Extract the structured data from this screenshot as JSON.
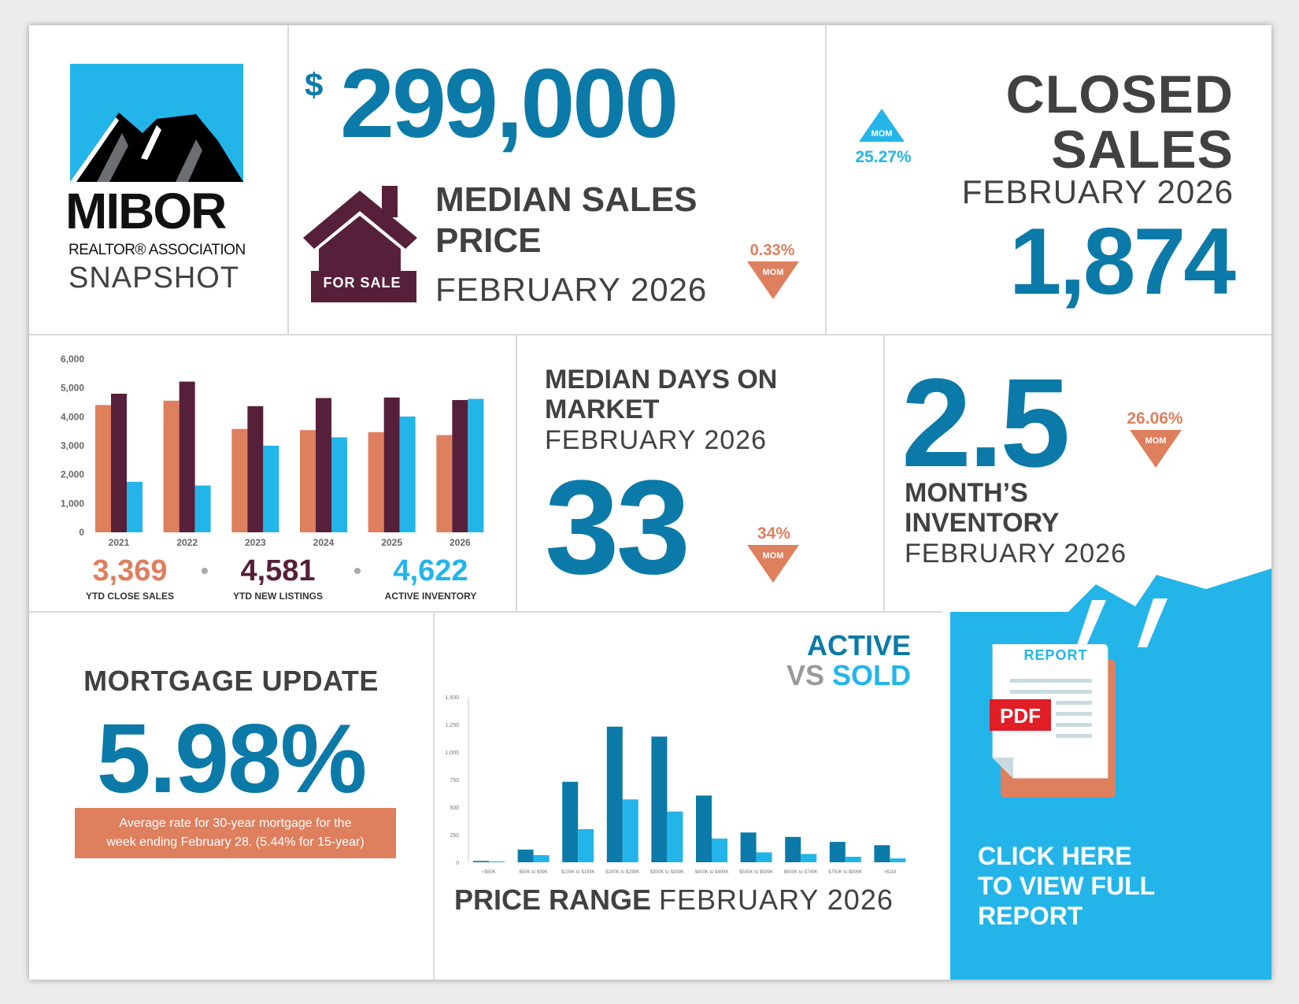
{
  "colors": {
    "dark": "#414142",
    "blue": "#0b7aa8",
    "light_blue": "#23b5e9",
    "orange": "#de7f5e",
    "plum": "#57203a"
  },
  "logo": {
    "line1": "MIBOR",
    "line2": "REALTOR® ASSOCIATION",
    "line3": "SNAPSHOT"
  },
  "median_price": {
    "currency": "$",
    "value": "299,000",
    "title_line1": "MEDIAN SALES",
    "title_line2": "PRICE",
    "period": "FEBRUARY 2026",
    "house_sign": "FOR SALE",
    "change": "0.33%",
    "change_label": "MOM",
    "direction": "down"
  },
  "closed_sales": {
    "title_line1": "CLOSED",
    "title_line2": "SALES",
    "period": "FEBRUARY 2026",
    "value": "1,874",
    "change": "25.27%",
    "change_label": "MOM",
    "direction": "up"
  },
  "dom": {
    "title_line1": "MEDIAN DAYS ON",
    "title_line2": "MARKET",
    "period": "FEBRUARY 2026",
    "value": "33",
    "change": "34%",
    "change_label": "MOM",
    "direction": "down"
  },
  "inventory": {
    "value": "2.5",
    "title_line1": "MONTH’S",
    "title_line2": "INVENTORY",
    "period": "FEBRUARY 2026",
    "change": "26.06%",
    "change_label": "MOM",
    "direction": "down"
  },
  "ytd_stats": [
    {
      "value": "3,369",
      "label": "YTD CLOSE SALES"
    },
    {
      "value": "4,581",
      "label": "YTD NEW LISTINGS"
    },
    {
      "value": "4,622",
      "label": "ACTIVE INVENTORY"
    }
  ],
  "mortgage": {
    "title": "MORTGAGE UPDATE",
    "value": "5.98%",
    "note_line1": "Average rate for 30-year mortgage for the",
    "note_line2": "week ending February 28. (5.44% for 15-year)"
  },
  "price_range": {
    "legend_active": "ACTIVE",
    "legend_vs": "VS",
    "legend_sold": "SOLD",
    "footer_bold": "PRICE RANGE",
    "footer_period": "FEBRUARY 2026"
  },
  "report": {
    "doc_title": "REPORT",
    "doc_badge": "PDF",
    "cta_line1": "CLICK HERE",
    "cta_line2": "TO VIEW FULL",
    "cta_line3": "REPORT"
  },
  "chart_data": [
    {
      "type": "bar",
      "categories": [
        "2021",
        "2022",
        "2023",
        "2024",
        "2025",
        "2026"
      ],
      "series": [
        {
          "values": [
            4410,
            4560,
            3580,
            3540,
            3470,
            3369
          ]
        },
        {
          "values": [
            4800,
            5220,
            4370,
            4650,
            4670,
            4581
          ]
        },
        {
          "values": [
            1750,
            1620,
            3000,
            3290,
            4010,
            4622
          ]
        }
      ],
      "yticks": [
        "6,000",
        "5,000",
        "4,000",
        "3,000",
        "2,000",
        "1,000",
        "0"
      ],
      "ylim": [
        0,
        6000
      ]
    },
    {
      "type": "bar",
      "categories": [
        "<$50K",
        "$50K to $99K",
        "$100K to $199K",
        "$200K to $299K",
        "$300K to $399K",
        "$400K to $499K",
        "$500K to $599K",
        "$600K to $749K",
        "$750K to $999K",
        ">$1M"
      ],
      "series": [
        {
          "name": "ACTIVE",
          "values": [
            12,
            115,
            730,
            1230,
            1140,
            605,
            270,
            230,
            185,
            155
          ]
        },
        {
          "name": "SOLD",
          "values": [
            8,
            65,
            300,
            570,
            460,
            215,
            90,
            75,
            50,
            35
          ]
        }
      ],
      "yticks": [
        "1,500",
        "1,250",
        "1,000",
        "750",
        "500",
        "250",
        "0"
      ],
      "ylim": [
        0,
        1500
      ]
    }
  ]
}
